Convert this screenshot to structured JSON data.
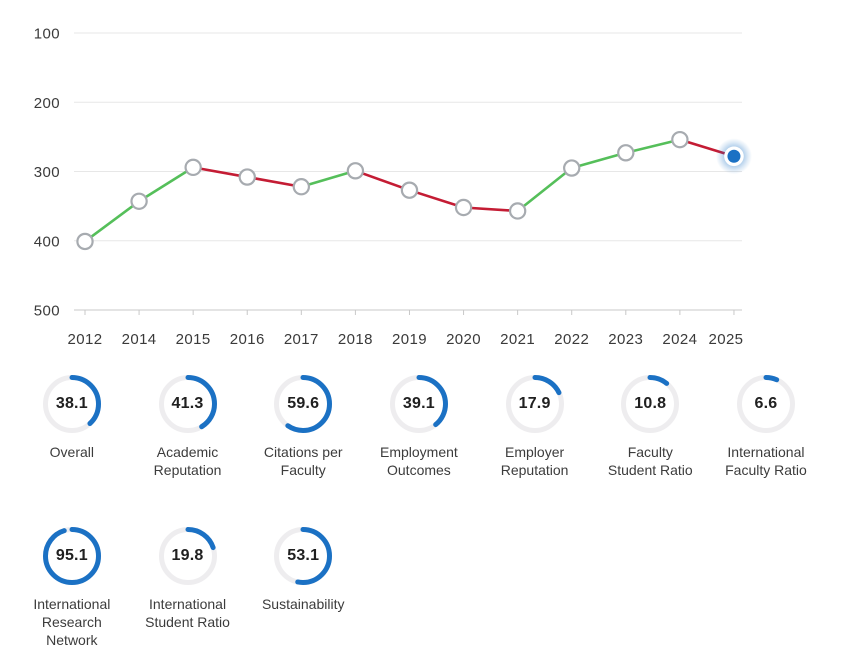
{
  "chart_data": {
    "type": "line",
    "title": "",
    "categories": [
      "2012",
      "2014",
      "2015",
      "2016",
      "2017",
      "2018",
      "2019",
      "2020",
      "2021",
      "2022",
      "2023",
      "2024",
      "2025"
    ],
    "values": [
      401,
      343,
      294,
      308,
      322,
      299,
      327,
      352,
      357,
      295,
      273,
      254,
      278
    ],
    "y_ticks": [
      100,
      200,
      300,
      400,
      500
    ],
    "ylim": [
      100,
      500
    ],
    "y_inverted": true,
    "grid": true,
    "legend": "none",
    "colors": {
      "improving_segment": "#55bf5a",
      "declining_segment": "#c41c34",
      "current_point": "#1b71c4",
      "marker_fill": "#ffffff",
      "marker_stroke": "#a7abb0",
      "gridline": "#e7e7e7",
      "axis": "#c8c8c8",
      "tick_label": "#3a3a3a"
    }
  },
  "indicators": {
    "row_split": 7,
    "colors": {
      "arc": "#1b71c4",
      "track": "#eeedef",
      "value_text": "#202020",
      "label_text": "#3c3c3c"
    },
    "items": [
      {
        "value": "38.1",
        "label": "Overall"
      },
      {
        "value": "41.3",
        "label": "Academic\nReputation"
      },
      {
        "value": "59.6",
        "label": "Citations per\nFaculty"
      },
      {
        "value": "39.1",
        "label": "Employment\nOutcomes"
      },
      {
        "value": "17.9",
        "label": "Employer\nReputation"
      },
      {
        "value": "10.8",
        "label": "Faculty\nStudent Ratio"
      },
      {
        "value": "6.6",
        "label": "International\nFaculty Ratio"
      },
      {
        "value": "95.1",
        "label": "International\nResearch\nNetwork"
      },
      {
        "value": "19.8",
        "label": "International\nStudent Ratio"
      },
      {
        "value": "53.1",
        "label": "Sustainability"
      }
    ]
  }
}
